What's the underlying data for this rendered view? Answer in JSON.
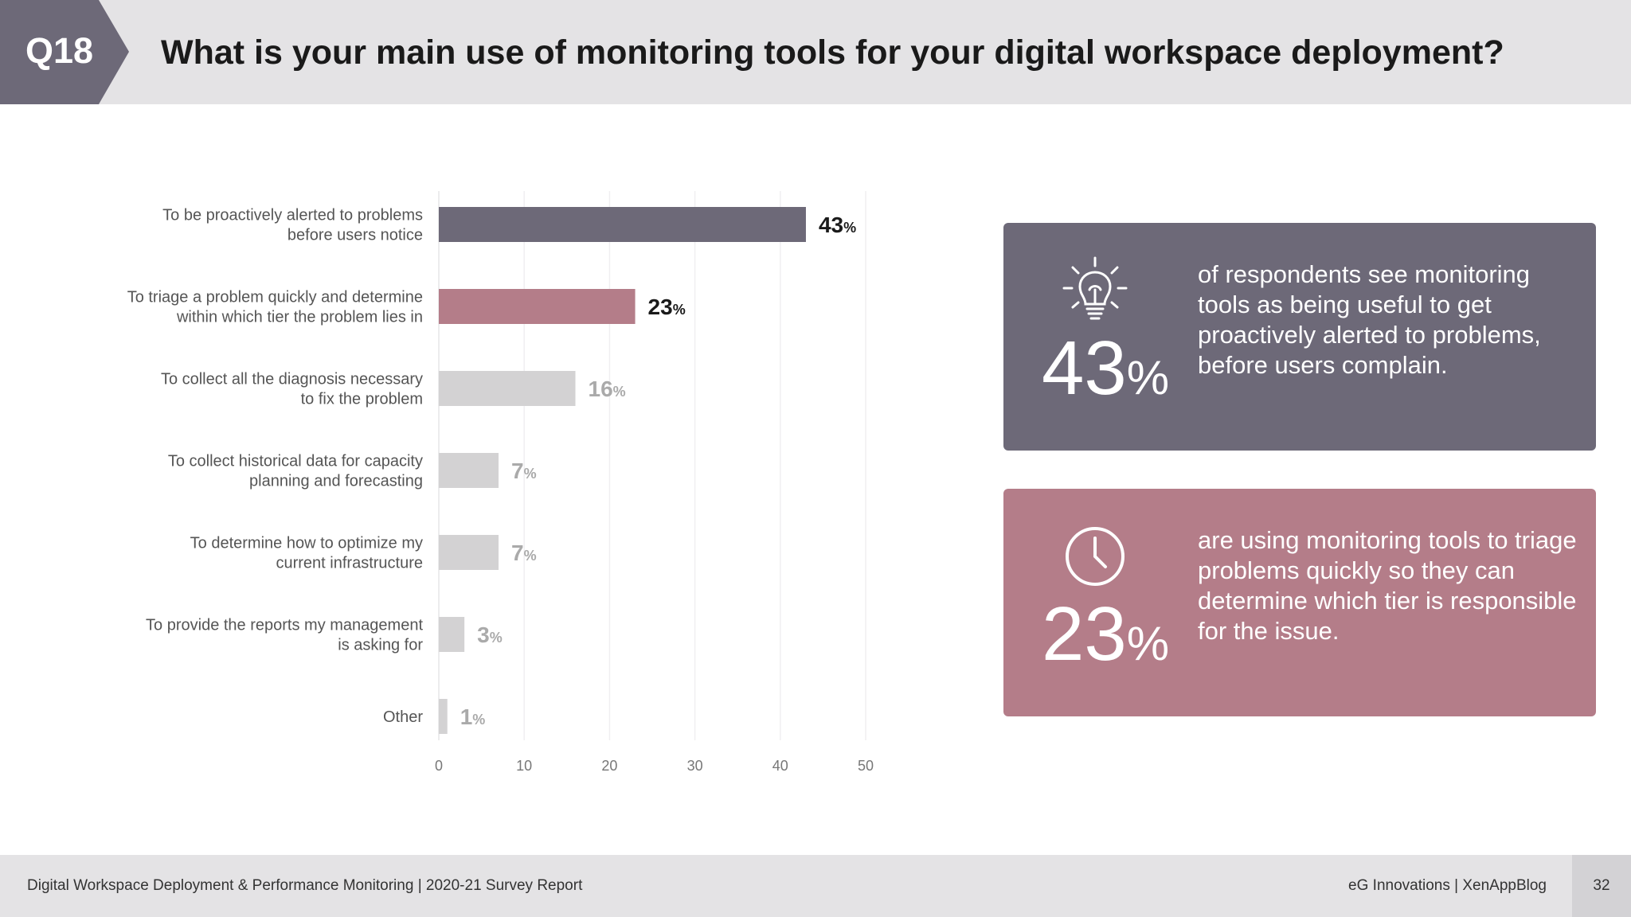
{
  "header": {
    "badge": "Q18",
    "title": "What is your main use of monitoring tools for your digital workspace deployment?"
  },
  "chart_data": {
    "type": "bar",
    "orientation": "horizontal",
    "title": "What is your main use of monitoring tools for your digital workspace deployment?",
    "categories": [
      [
        "To be proactively alerted to problems",
        "before users notice"
      ],
      [
        "To triage a problem quickly and determine",
        "within which tier the problem lies in"
      ],
      [
        "To collect all the diagnosis necessary",
        "to fix the problem"
      ],
      [
        "To collect historical data for capacity",
        "planning and forecasting"
      ],
      [
        "To determine how to optimize my",
        "current infrastructure"
      ],
      [
        "To provide the reports my management",
        "is asking for"
      ],
      [
        "Other"
      ]
    ],
    "values": [
      43,
      23,
      16,
      7,
      7,
      3,
      1
    ],
    "unit": "%",
    "bar_colors": [
      "#6d6978",
      "#b47d89",
      "#d3d2d3",
      "#d3d2d3",
      "#d3d2d3",
      "#d3d2d3",
      "#d3d2d3"
    ],
    "label_colors": [
      "#1a1a1a",
      "#1a1a1a",
      "#aaaaaa",
      "#aaaaaa",
      "#aaaaaa",
      "#aaaaaa",
      "#aaaaaa"
    ],
    "xlim": [
      0,
      50
    ],
    "xticks": [
      0,
      10,
      20,
      30,
      40,
      50
    ],
    "grid": true
  },
  "cards": [
    {
      "icon": "lightbulb-icon",
      "value": "43",
      "unit": "%",
      "text": "of respondents see monitoring tools as being useful to get proactively alerted to problems, before users complain.",
      "color": "#6d6978"
    },
    {
      "icon": "clock-icon",
      "value": "23",
      "unit": "%",
      "text": "are using monitoring tools to triage problems quickly so they can determine which tier is responsible for the issue.",
      "color": "#b47d89"
    }
  ],
  "footer": {
    "left": "Digital Workspace Deployment & Performance Monitoring | 2020-21 Survey Report",
    "right": "eG Innovations  |  XenAppBlog",
    "page": "32"
  }
}
